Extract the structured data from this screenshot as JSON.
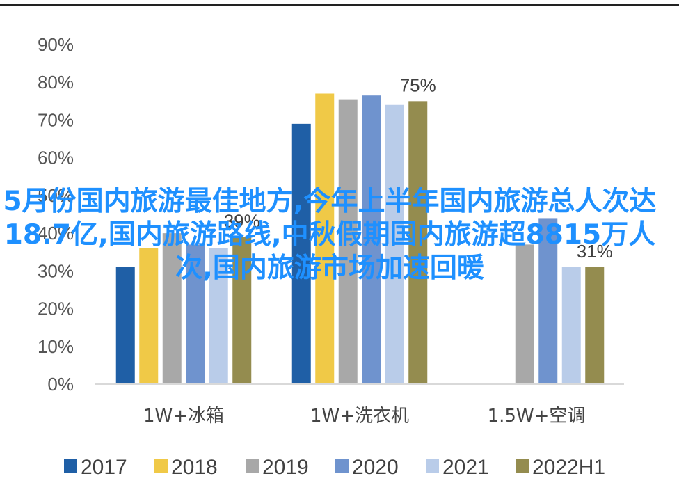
{
  "chart_data": {
    "type": "bar",
    "categories": [
      "1W+冰箱",
      "1W+洗衣机",
      "1.5W+空调"
    ],
    "series": [
      {
        "name": "2017",
        "color": "#1f5fa6",
        "values": [
          31,
          69,
          null
        ]
      },
      {
        "name": "2018",
        "color": "#f0c947",
        "values": [
          36,
          77,
          null
        ]
      },
      {
        "name": "2019",
        "color": "#a8a8a8",
        "values": [
          40,
          75.5,
          37
        ]
      },
      {
        "name": "2020",
        "color": "#6f93ce",
        "values": [
          37,
          76.5,
          44
        ]
      },
      {
        "name": "2021",
        "color": "#b9cce9",
        "values": [
          36,
          74,
          31
        ]
      },
      {
        "name": "2022H1",
        "color": "#948c4f",
        "values": [
          39,
          75,
          31
        ]
      }
    ],
    "data_labels": [
      {
        "category": "1W+冰箱",
        "series": "2022H1",
        "text": "39%"
      },
      {
        "category": "1W+洗衣机",
        "series": "2022H1",
        "text": "75%"
      },
      {
        "category": "1.5W+空调",
        "series": "2022H1",
        "text": "31%"
      }
    ],
    "y_ticks": [
      "0%",
      "10%",
      "20%",
      "30%",
      "40%",
      "50%",
      "60%",
      "70%",
      "80%",
      "90%"
    ],
    "ylim": [
      0,
      90
    ],
    "legend_position": "bottom",
    "grid": false,
    "title": "",
    "xlabel": "",
    "ylabel": ""
  },
  "overlay_text": "5月份国内旅游最佳地方,今年上半年国内旅游总人次达18.7亿,国内旅游路线,中秋假期国内旅游超8815万人次,国内旅游市场加速回暖"
}
